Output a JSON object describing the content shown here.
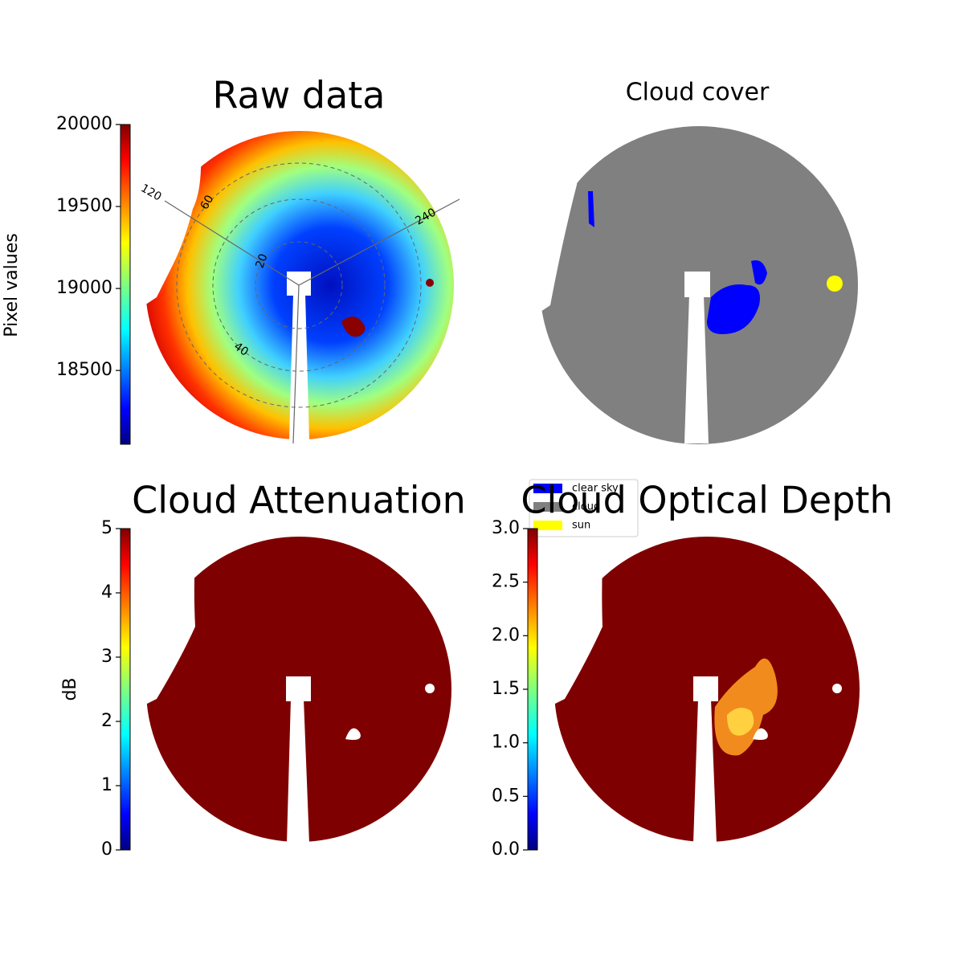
{
  "chart_data": [
    {
      "type": "image",
      "title": "Raw data",
      "colormap": "jet",
      "colorbar_label": "Pixel values",
      "clim": [
        18050,
        20000
      ],
      "cticks": [
        18500,
        19000,
        19500,
        20000
      ],
      "angle_ticks": [
        120,
        240
      ],
      "radius_ticks": [
        20,
        40,
        60
      ]
    },
    {
      "type": "image",
      "title": "Cloud cover",
      "legend": [
        {
          "name": "clear sky",
          "color": "#0000ff"
        },
        {
          "name": "cloud",
          "color": "#808080"
        },
        {
          "name": "sun",
          "color": "#ffff00"
        }
      ]
    },
    {
      "type": "image",
      "title": "Cloud Attenuation",
      "colormap": "jet",
      "colorbar_label": "dB",
      "clim": [
        0,
        5
      ],
      "cticks": [
        0,
        1,
        2,
        3,
        4,
        5
      ]
    },
    {
      "type": "image",
      "title": "Cloud Optical Depth",
      "colormap": "jet",
      "clim": [
        0,
        3
      ],
      "cticks": [
        {
          "value": 0,
          "label": "0.0"
        },
        {
          "value": 0.5,
          "label": "0.5"
        },
        {
          "value": 1,
          "label": "1.0"
        },
        {
          "value": 1.5,
          "label": "1.5"
        },
        {
          "value": 2,
          "label": "2.0"
        },
        {
          "value": 2.5,
          "label": "2.5"
        },
        {
          "value": 3,
          "label": "3.0"
        }
      ]
    }
  ]
}
